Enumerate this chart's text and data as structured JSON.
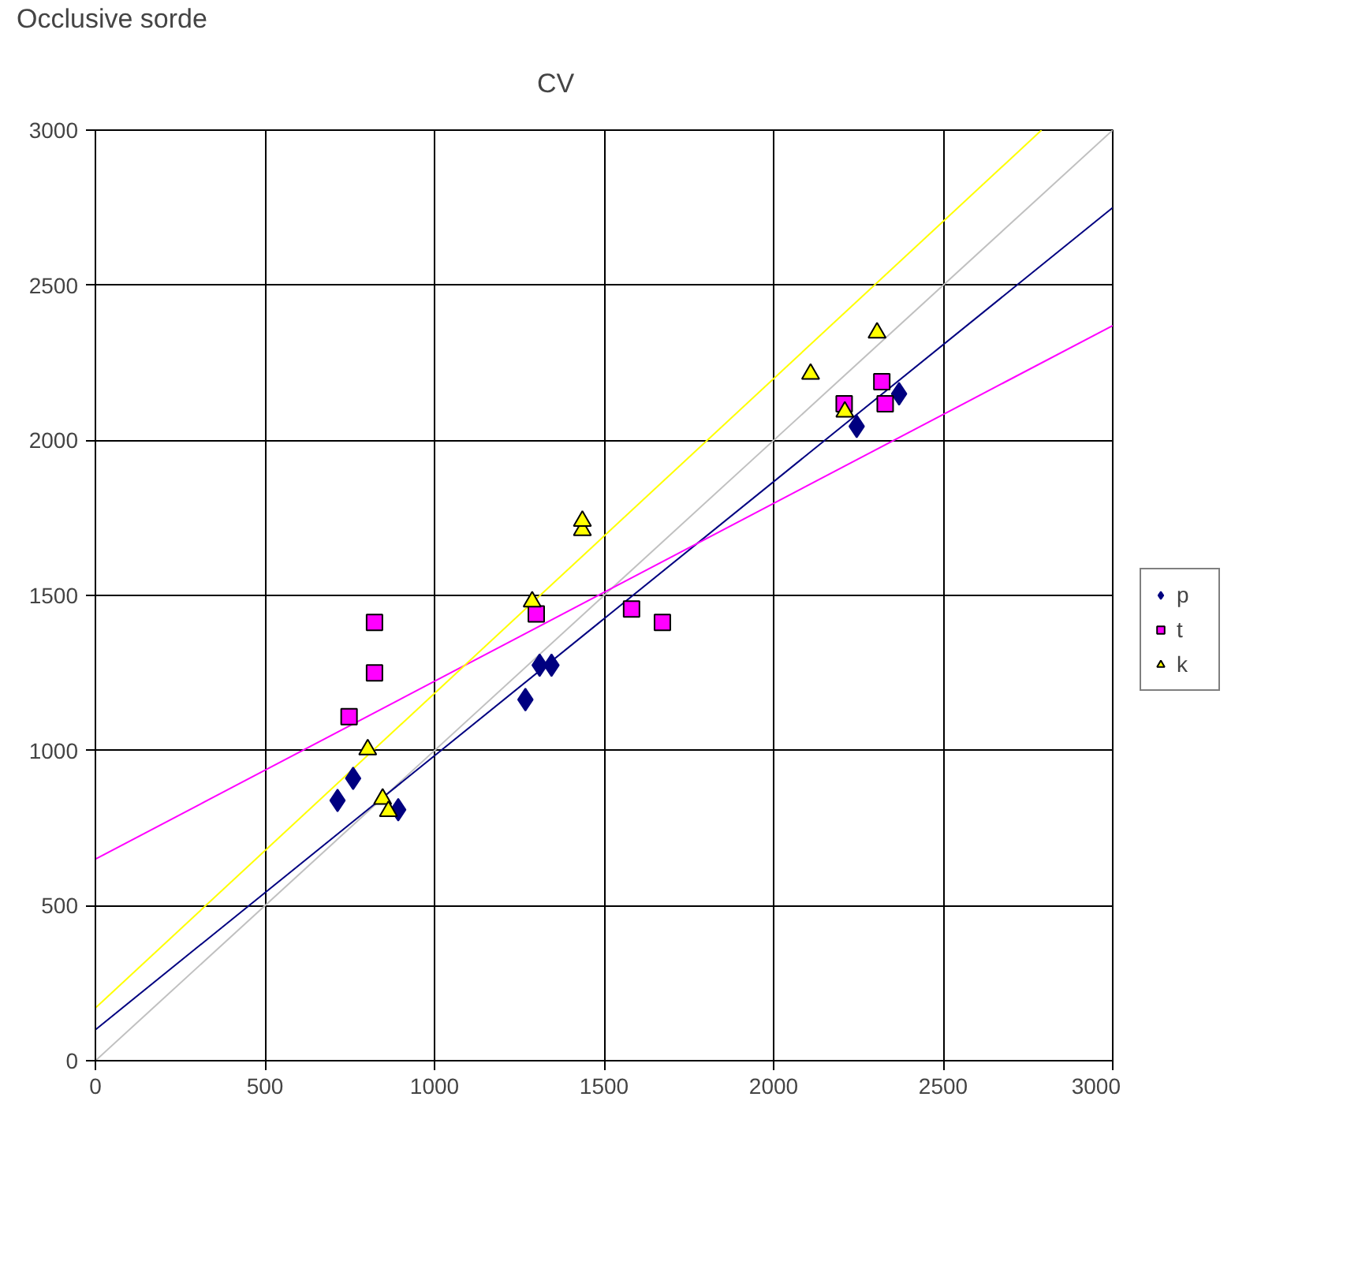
{
  "chart_data": {
    "type": "scatter",
    "title": "Occlusive sorde",
    "subtitle": "CV",
    "xlim": [
      0,
      3000
    ],
    "ylim": [
      0,
      3000
    ],
    "xticks": [
      0,
      500,
      1000,
      1500,
      2000,
      2500,
      3000
    ],
    "yticks": [
      0,
      500,
      1000,
      1500,
      2000,
      2500,
      3000
    ],
    "grid": true,
    "legend": "right",
    "series": [
      {
        "name": "p",
        "color": "#000080",
        "marker": "diamond",
        "x": [
          714,
          760,
          893,
          1268,
          1310,
          1345,
          2245,
          2370
        ],
        "values": [
          839,
          910,
          809,
          1164,
          1275,
          1275,
          2045,
          2150
        ]
      },
      {
        "name": "t",
        "color": "#ff00ff",
        "marker": "square",
        "x": [
          748,
          823,
          823,
          1300,
          1581,
          1672,
          2208,
          2319,
          2329
        ],
        "values": [
          1109,
          1250,
          1413,
          1440,
          1456,
          1413,
          2118,
          2189,
          2118
        ]
      },
      {
        "name": "k",
        "color": "#ffff00",
        "marker": "triangle",
        "x": [
          803,
          847,
          864,
          1288,
          1436,
          1436,
          2109,
          2210,
          2305
        ],
        "values": [
          1003,
          844,
          804,
          1480,
          1710,
          1740,
          2214,
          2092,
          2347
        ]
      },
      {
        "type": "line",
        "color": "#c0c0c0",
        "marker": "none",
        "x": [
          0,
          3000
        ],
        "values": [
          0,
          3000
        ]
      },
      {
        "type": "line",
        "color": "#000080",
        "marker": "none",
        "x": [
          0,
          3000
        ],
        "values": [
          100,
          2750
        ]
      },
      {
        "type": "line",
        "color": "#ff00ff",
        "marker": "none",
        "x": [
          0,
          3000
        ],
        "values": [
          650,
          2370
        ]
      },
      {
        "type": "line",
        "color": "#ffff00",
        "marker": "none",
        "x": [
          0,
          2790
        ],
        "values": [
          170,
          3000
        ]
      }
    ]
  }
}
